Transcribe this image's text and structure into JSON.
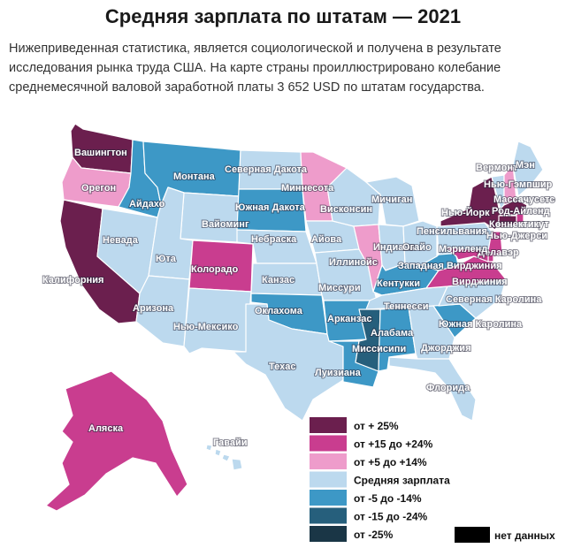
{
  "header": {
    "title": "Средняя зарплата по штатам — 2021",
    "intro": "Нижеприведенная статистика, является социологической и получена в результате исследования рынка труда США. На карте страны проиллюстрировано колебание среднемесячной валовой заработной платы 3 652 USD по штатам государства."
  },
  "colors": {
    "p25": "#6b1f4e",
    "p15": "#c93d8f",
    "p5": "#ee9ccb",
    "avg": "#bcd9ee",
    "m5": "#3d98c6",
    "m15": "#265f7c",
    "m25": "#1a3646",
    "nodata": "#000000"
  },
  "legend": [
    {
      "key": "p25",
      "label": "от + 25%"
    },
    {
      "key": "p15",
      "label": "от +15 до +24%"
    },
    {
      "key": "p5",
      "label": "от +5 до +14%"
    },
    {
      "key": "avg",
      "label": "Средняя зарплата"
    },
    {
      "key": "m5",
      "label": "от -5 до -14%"
    },
    {
      "key": "m15",
      "label": "от -15 до -24%"
    },
    {
      "key": "m25",
      "label": "от -25%"
    }
  ],
  "nodata_label": "нет данных",
  "states": [
    {
      "id": "WA",
      "name": "Вашингтон",
      "cat": "p25"
    },
    {
      "id": "OR",
      "name": "Орегон",
      "cat": "p5"
    },
    {
      "id": "CA",
      "name": "Калифорния",
      "cat": "p25"
    },
    {
      "id": "NV",
      "name": "Невада",
      "cat": "avg"
    },
    {
      "id": "ID",
      "name": "Айдахо",
      "cat": "m5"
    },
    {
      "id": "MT",
      "name": "Монтана",
      "cat": "m5"
    },
    {
      "id": "WY",
      "name": "Вайоминг",
      "cat": "avg"
    },
    {
      "id": "UT",
      "name": "Юта",
      "cat": "avg"
    },
    {
      "id": "AZ",
      "name": "Аризона",
      "cat": "avg"
    },
    {
      "id": "CO",
      "name": "Колорадо",
      "cat": "p15"
    },
    {
      "id": "NM",
      "name": "Нью-Мексико",
      "cat": "avg"
    },
    {
      "id": "ND",
      "name": "Северная Дакота",
      "cat": "avg"
    },
    {
      "id": "SD",
      "name": "Южная Дакота",
      "cat": "m5"
    },
    {
      "id": "NE",
      "name": "Небраска",
      "cat": "avg"
    },
    {
      "id": "KS",
      "name": "Канзас",
      "cat": "avg"
    },
    {
      "id": "OK",
      "name": "Оклахома",
      "cat": "m5"
    },
    {
      "id": "TX",
      "name": "Техас",
      "cat": "avg"
    },
    {
      "id": "MN",
      "name": "Миннесота",
      "cat": "p5"
    },
    {
      "id": "IA",
      "name": "Айова",
      "cat": "avg"
    },
    {
      "id": "MO",
      "name": "Миссури",
      "cat": "avg"
    },
    {
      "id": "AR",
      "name": "Арканзас",
      "cat": "m5"
    },
    {
      "id": "LA",
      "name": "Луизиана",
      "cat": "m5"
    },
    {
      "id": "WI",
      "name": "Висконсин",
      "cat": "avg"
    },
    {
      "id": "IL",
      "name": "Иллинойс",
      "cat": "p5"
    },
    {
      "id": "MI",
      "name": "Мичиган",
      "cat": "avg"
    },
    {
      "id": "IN",
      "name": "Индиана",
      "cat": "avg"
    },
    {
      "id": "OH",
      "name": "Огайо",
      "cat": "avg"
    },
    {
      "id": "KY",
      "name": "Кентукки",
      "cat": "m5"
    },
    {
      "id": "TN",
      "name": "Теннесси",
      "cat": "avg"
    },
    {
      "id": "MS",
      "name": "Миссисипи",
      "cat": "m15"
    },
    {
      "id": "AL",
      "name": "Алабама",
      "cat": "m5"
    },
    {
      "id": "GA",
      "name": "Джорджия",
      "cat": "avg"
    },
    {
      "id": "FL",
      "name": "Флорида",
      "cat": "avg"
    },
    {
      "id": "SC",
      "name": "Южная Каролина",
      "cat": "m5"
    },
    {
      "id": "NC",
      "name": "Северная Каролина",
      "cat": "avg"
    },
    {
      "id": "VA",
      "name": "Вирджиния",
      "cat": "p15"
    },
    {
      "id": "WV",
      "name": "Западная Вирджиния",
      "cat": "m5"
    },
    {
      "id": "PA",
      "name": "Пенсильвания",
      "cat": "avg"
    },
    {
      "id": "NY",
      "name": "Нью-Йорк",
      "cat": "p25"
    },
    {
      "id": "VT",
      "name": "Вермонт",
      "cat": "avg"
    },
    {
      "id": "NH",
      "name": "Нью-Гэмпшир",
      "cat": "p5"
    },
    {
      "id": "ME",
      "name": "Мэн",
      "cat": "avg"
    },
    {
      "id": "MA",
      "name": "Массачусетс",
      "cat": "p25"
    },
    {
      "id": "RI",
      "name": "Род-Айленд",
      "cat": "p15"
    },
    {
      "id": "CT",
      "name": "Коннектикут",
      "cat": "p25"
    },
    {
      "id": "NJ",
      "name": "Нью-Джерси",
      "cat": "p15"
    },
    {
      "id": "DE",
      "name": "Делавэр",
      "cat": "p15"
    },
    {
      "id": "MD",
      "name": "Мэриленд",
      "cat": "p15"
    },
    {
      "id": "AK",
      "name": "Аляска",
      "cat": "p15"
    },
    {
      "id": "HI",
      "name": "Гавайи",
      "cat": "avg"
    }
  ]
}
